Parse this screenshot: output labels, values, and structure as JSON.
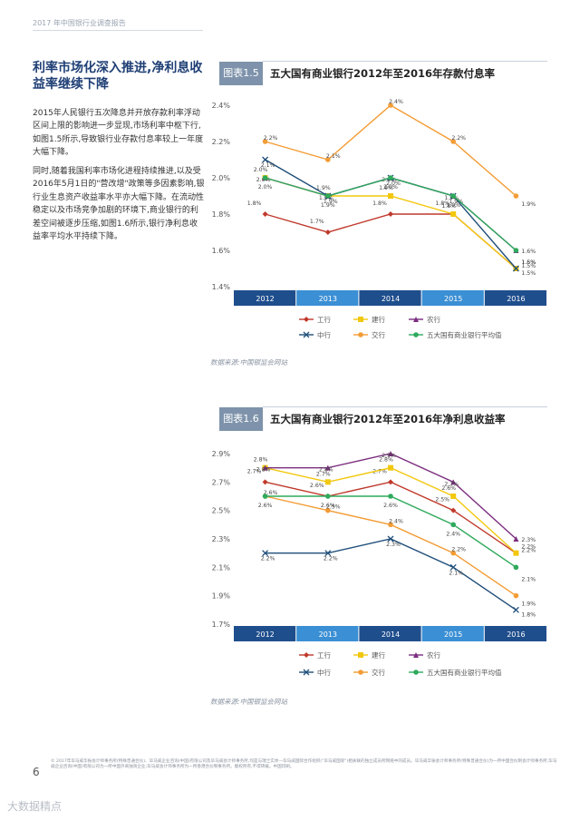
{
  "page": {
    "header": "2017 年中国银行业调查报告",
    "page_number": "6",
    "watermark": "大数据精点",
    "footer": "© 2017年毕马威华振会计师事务所(特殊普通合伙)、毕马威企业咨询(中国)有限公司及毕马威会计师事务所,均是与瑞士实体—毕马威国际合作组织(\"毕马威国际\")相关联的独立成员所网络中的成员。毕马威华振会计师事务所(特殊普通合伙)为一所中国合伙制会计师事务所;毕马威企业咨询(中国)有限公司为一所中国外商独资企业;毕马威会计师事务所为一所香港合伙制事务所。版权所有,不得转载。中国印刷。"
  },
  "article": {
    "title": "利率市场化深入推进,净利息收益率继续下降",
    "para1": "2015年人民银行五次降息并开放存款利率浮动区间上限的影响进一步显现,市场利率中枢下行,如图1.5所示,导致银行业存款付息率较上一年度大幅下降。",
    "para2": "同时,随着我国利率市场化进程持续推进,以及受2016年5月1日的\"营改增\"政策等多因素影响,银行业生息资产收益率水平亦大幅下降。在流动性稳定以及市场竞争加剧的环境下,商业银行的利差空间被逐步压缩,如图1.6所示,银行净利息收益率平均水平持续下降。"
  },
  "chart_data": [
    {
      "type": "line",
      "badge": "图表1.5",
      "title": "五大国有商业银行2012年至2016年存款付息率",
      "source": "数据来源:中国银监会网站",
      "categories": [
        "2012",
        "2013",
        "2014",
        "2015",
        "2016"
      ],
      "ylim": [
        1.4,
        2.4
      ],
      "yticks": [
        "1.4%",
        "1.6%",
        "1.8%",
        "2.0%",
        "2.2%",
        "2.4%"
      ],
      "ytick_values": [
        1.4,
        1.6,
        1.8,
        2.0,
        2.2,
        2.4
      ],
      "series": [
        {
          "name": "工行",
          "color": "#c0392b",
          "marker": "diamond",
          "values": [
            1.8,
            1.7,
            1.8,
            1.8,
            1.5
          ],
          "labels": [
            "1.8%",
            "1.7%",
            "1.8%",
            "1.8%",
            "1.5%"
          ]
        },
        {
          "name": "建行",
          "color": "#f2c80f",
          "marker": "square",
          "values": [
            2.0,
            1.9,
            1.9,
            1.8,
            1.5
          ],
          "labels": [
            "2.0%",
            "1.9%",
            "1.9%",
            "1.8%",
            "1.5%"
          ]
        },
        {
          "name": "农行",
          "color": "#7b2d7f",
          "marker": "triangle",
          "values": [
            2.0,
            1.9,
            2.0,
            1.9,
            1.6
          ],
          "labels": [
            "2.0%",
            "1.9%",
            "2.0%",
            "1.9%",
            "1.6%"
          ]
        },
        {
          "name": "中行",
          "color": "#1f4e79",
          "marker": "cross",
          "values": [
            2.1,
            1.9,
            2.0,
            1.9,
            1.5
          ],
          "labels": [
            "2.1%",
            "1.9%",
            "2.0%",
            "1.9%",
            "1.5%"
          ]
        },
        {
          "name": "交行",
          "color": "#f39c35",
          "marker": "circle",
          "values": [
            2.2,
            2.1,
            2.4,
            2.2,
            1.9
          ],
          "labels": [
            "2.2%",
            "2.1%",
            "2.4%",
            "2.2%",
            "1.9%"
          ]
        },
        {
          "name": "五大国有商业银行平均值",
          "color": "#2eaa5c",
          "marker": "circle",
          "values": [
            2.0,
            1.9,
            2.0,
            1.9,
            1.6
          ],
          "labels": [
            "2.0%",
            "1.9%",
            "2.0%",
            "1.9%",
            "1.6%"
          ]
        }
      ]
    },
    {
      "type": "line",
      "badge": "图表1.6",
      "title": "五大国有商业银行2012年至2016年净利息收益率",
      "source": "数据来源:中国银监会网站",
      "categories": [
        "2012",
        "2013",
        "2014",
        "2015",
        "2016"
      ],
      "ylim": [
        1.7,
        2.9
      ],
      "yticks": [
        "1.7%",
        "1.9%",
        "2.1%",
        "2.3%",
        "2.5%",
        "2.7%",
        "2.9%"
      ],
      "ytick_values": [
        1.7,
        1.9,
        2.1,
        2.3,
        2.5,
        2.7,
        2.9
      ],
      "series": [
        {
          "name": "工行",
          "color": "#c0392b",
          "marker": "diamond",
          "values": [
            2.7,
            2.6,
            2.7,
            2.5,
            2.2
          ],
          "labels": [
            "2.7%",
            "2.6%",
            "2.7%",
            "2.5%",
            "2.2%"
          ]
        },
        {
          "name": "建行",
          "color": "#f2c80f",
          "marker": "square",
          "values": [
            2.8,
            2.7,
            2.8,
            2.6,
            2.2
          ],
          "labels": [
            "2.8%",
            "2.7%",
            "2.8%",
            "2.6%",
            "2.2%"
          ]
        },
        {
          "name": "农行",
          "color": "#7b2d7f",
          "marker": "triangle",
          "values": [
            2.8,
            2.8,
            2.9,
            2.7,
            2.3
          ],
          "labels": [
            "2.8%",
            "2.8%",
            "2.9%",
            "2.7%",
            "2.3%"
          ]
        },
        {
          "name": "中行",
          "color": "#1f4e79",
          "marker": "cross",
          "values": [
            2.2,
            2.2,
            2.3,
            2.1,
            1.8
          ],
          "labels": [
            "2.2%",
            "2.2%",
            "2.3%",
            "2.1%",
            "1.8%"
          ]
        },
        {
          "name": "交行",
          "color": "#f39c35",
          "marker": "circle",
          "values": [
            2.6,
            2.5,
            2.4,
            2.2,
            1.9
          ],
          "labels": [
            "2.6%",
            "2.5%",
            "2.4%",
            "2.2%",
            "1.9%"
          ]
        },
        {
          "name": "五大国有商业银行平均值",
          "color": "#2eaa5c",
          "marker": "circle",
          "values": [
            2.6,
            2.6,
            2.6,
            2.4,
            2.1
          ],
          "labels": [
            "2.6%",
            "2.6%",
            "2.6%",
            "2.4%",
            "2.1%"
          ]
        }
      ]
    }
  ]
}
